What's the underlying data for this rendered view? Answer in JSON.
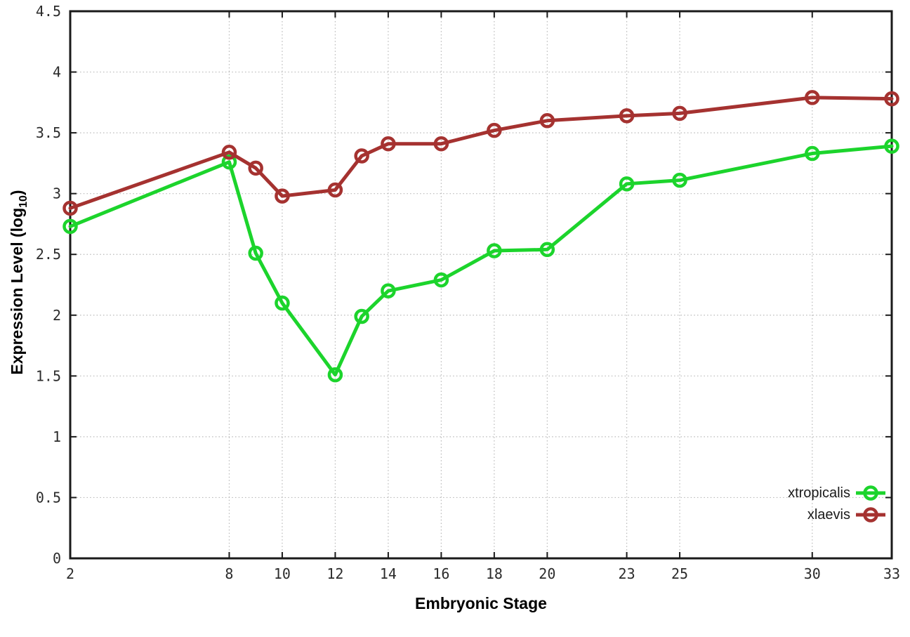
{
  "chart_data": {
    "type": "line",
    "title": "",
    "xlabel": "Embryonic Stage",
    "ylabel": "Expression Level (log10)",
    "ylabel_prefix": "Expression Level (log",
    "ylabel_sub": "10",
    "ylabel_suffix": ")",
    "xlim": [
      2,
      33
    ],
    "ylim": [
      0,
      4.5
    ],
    "x_ticks": [
      2,
      8,
      10,
      12,
      14,
      16,
      18,
      20,
      23,
      25,
      30,
      33
    ],
    "y_ticks": [
      0,
      0.5,
      1,
      1.5,
      2,
      2.5,
      3,
      3.5,
      4,
      4.5
    ],
    "grid": true,
    "legend_position": "bottom-right",
    "x": [
      2,
      8,
      9,
      10,
      12,
      13,
      14,
      16,
      18,
      20,
      23,
      25,
      30,
      33
    ],
    "series": [
      {
        "name": "xtropicalis",
        "color": "#1cd42c",
        "values": [
          2.73,
          3.26,
          2.51,
          2.1,
          1.51,
          1.99,
          2.2,
          2.29,
          2.53,
          2.54,
          3.08,
          3.11,
          3.33,
          3.39
        ]
      },
      {
        "name": "xlaevis",
        "color": "#a53230",
        "values": [
          2.88,
          3.34,
          3.21,
          2.98,
          3.03,
          3.31,
          3.41,
          3.41,
          3.52,
          3.6,
          3.64,
          3.66,
          3.79,
          3.78
        ]
      }
    ],
    "style": {
      "frame_color": "#1a1a1a",
      "grid_color": "#b8b8b8",
      "tick_label_color": "#2b2b2b"
    }
  }
}
